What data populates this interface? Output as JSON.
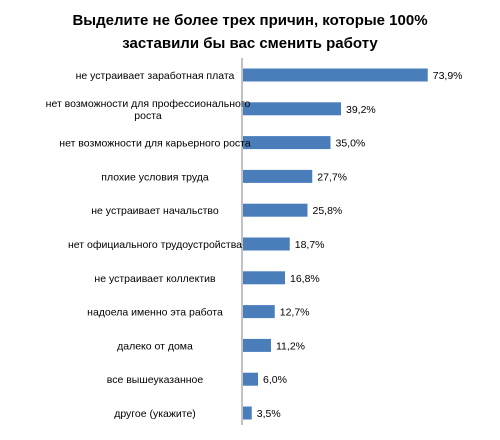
{
  "chart_data": {
    "type": "bar",
    "orientation": "horizontal",
    "title_lines": [
      "Выделите не более трех причин, которые 100%",
      "заставили бы вас сменить работу"
    ],
    "xlabel": "",
    "ylabel": "",
    "xlim": [
      0,
      80
    ],
    "grid": false,
    "legend": "none",
    "bar_color": "#4A7EBB",
    "categories": [
      [
        "не устраивает заработная плата"
      ],
      [
        "нет возможности для профессионального",
        "роста"
      ],
      [
        "нет возможности для карьерного роста"
      ],
      [
        "плохие условия труда"
      ],
      [
        "не устраивает начальство"
      ],
      [
        "нет официального трудоустройства"
      ],
      [
        "не устраивает коллектив"
      ],
      [
        "надоела именно эта работа"
      ],
      [
        "далеко от дома"
      ],
      [
        "все вышеуказанное"
      ],
      [
        "другое (укажите)"
      ]
    ],
    "values": [
      73.9,
      39.2,
      35.0,
      27.7,
      25.8,
      18.7,
      16.8,
      12.7,
      11.2,
      6.0,
      3.5
    ],
    "value_labels": [
      "73,9%",
      "39,2%",
      "35,0%",
      "27,7%",
      "25,8%",
      "18,7%",
      "16,8%",
      "12,7%",
      "11,2%",
      "6,0%",
      "3,5%"
    ]
  }
}
